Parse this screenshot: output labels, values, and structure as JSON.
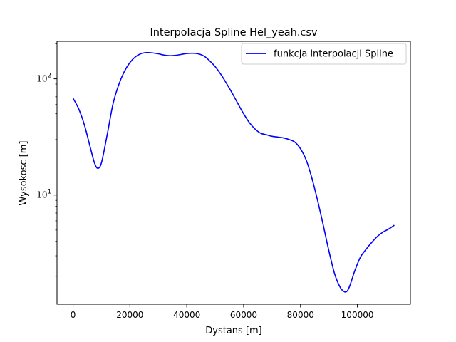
{
  "chart_data": {
    "type": "line",
    "title": "Interpolacja Spline Hel_yeah.csv",
    "xlabel": "Dystans [m]",
    "ylabel": "Wysokosc [m]",
    "xlim": [
      -5650,
      118650
    ],
    "ylim": [
      1.15,
      210
    ],
    "yscale": "log",
    "grid": false,
    "legend_position": "top-right",
    "x_ticks": [
      {
        "value": 0,
        "label": "0"
      },
      {
        "value": 20000,
        "label": "20000"
      },
      {
        "value": 40000,
        "label": "40000"
      },
      {
        "value": 60000,
        "label": "60000"
      },
      {
        "value": 80000,
        "label": "80000"
      },
      {
        "value": 100000,
        "label": "100000"
      }
    ],
    "y_ticks": [
      {
        "value": 10,
        "base": "10",
        "exp": "1"
      },
      {
        "value": 100,
        "base": "10",
        "exp": "2"
      }
    ],
    "series": [
      {
        "name": "funkcja interpolacji Spline",
        "color": "#0000ff",
        "x": [
          0,
          2000,
          4000,
          6000,
          7500,
          8700,
          10000,
          12000,
          14000,
          16000,
          18000,
          20000,
          22000,
          24000,
          26000,
          28000,
          30000,
          32000,
          34000,
          36000,
          38000,
          40000,
          42000,
          44000,
          46000,
          48000,
          50000,
          52000,
          54000,
          56000,
          58000,
          60000,
          62000,
          64000,
          66000,
          68000,
          70000,
          72000,
          74000,
          76000,
          78000,
          80000,
          82000,
          84000,
          86000,
          88000,
          90000,
          92000,
          94000,
          95500,
          96500,
          97500,
          99000,
          101000,
          103000,
          105000,
          107000,
          109000,
          111000,
          113000
        ],
        "values": [
          68,
          55,
          40,
          26,
          19,
          17,
          19,
          33,
          60,
          88,
          115,
          138,
          155,
          165,
          168,
          167,
          164,
          160,
          158,
          159,
          162,
          165,
          166,
          164,
          157,
          143,
          127,
          109,
          91,
          75,
          61,
          50,
          42,
          37,
          34,
          33,
          32,
          31.5,
          31,
          30,
          28.5,
          25,
          20,
          14,
          9,
          5.5,
          3.3,
          2.1,
          1.6,
          1.47,
          1.5,
          1.7,
          2.2,
          2.9,
          3.4,
          3.9,
          4.4,
          4.8,
          5.1,
          5.5
        ]
      }
    ]
  }
}
